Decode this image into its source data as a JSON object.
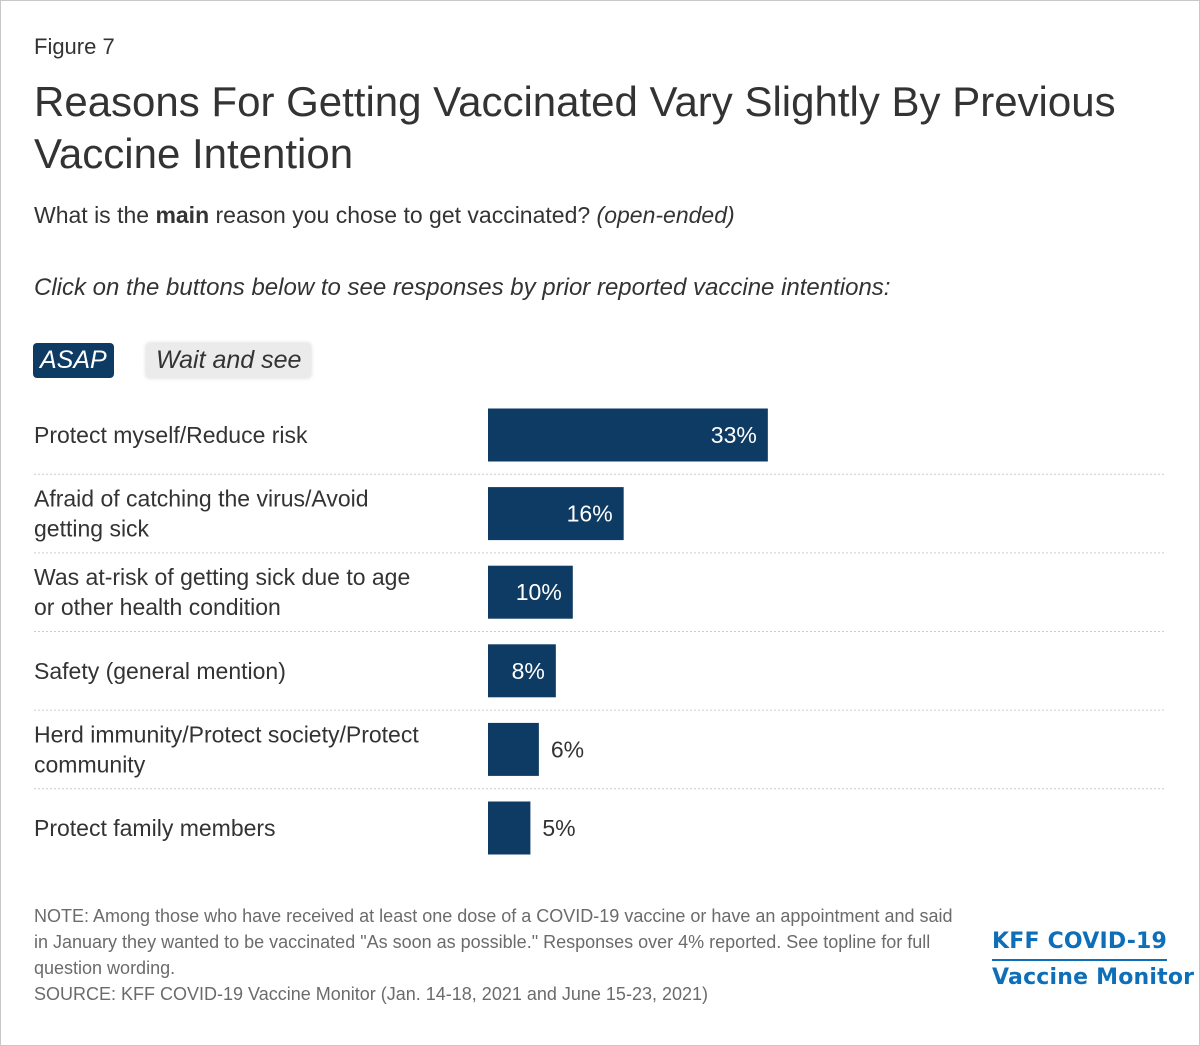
{
  "figure_label": "Figure 7",
  "title": "Reasons For Getting Vaccinated Vary Slightly By Previous Vaccine Intention",
  "subtitle": {
    "prefix": "What is the ",
    "bold": "main",
    "suffix": " reason you chose to get vaccinated? ",
    "italic": "(open-ended)"
  },
  "instruction": "Click on the buttons below to see responses by prior reported vaccine intentions:",
  "buttons": {
    "asap": "ASAP",
    "wait": "Wait and see"
  },
  "colors": {
    "bar": "#0e3b63",
    "grid": "#cccccc",
    "label_inside": "#ffffff",
    "label_outside": "#333333"
  },
  "chart_data": {
    "type": "bar",
    "orientation": "horizontal",
    "active_series": "ASAP",
    "categories": [
      [
        "Protect myself/Reduce risk"
      ],
      [
        "Afraid of catching the virus/Avoid",
        "getting sick"
      ],
      [
        "Was at-risk of getting sick due to age",
        "or other health condition"
      ],
      [
        "Safety (general mention)"
      ],
      [
        "Herd immunity/Protect society/Protect",
        "community"
      ],
      [
        "Protect family members"
      ]
    ],
    "values": [
      33,
      16,
      10,
      8,
      6,
      5
    ],
    "value_labels": [
      "33%",
      "16%",
      "10%",
      "8%",
      "6%",
      "5%"
    ],
    "xlim": [
      0,
      100
    ],
    "grid": false
  },
  "notes": {
    "note": "NOTE: Among those who have received at least one dose of a COVID-19 vaccine or have an appointment and said in January they wanted to be vaccinated \"As soon as possible.\" Responses over 4% reported. See topline for full question wording.",
    "source": "SOURCE: KFF COVID-19 Vaccine Monitor (Jan. 14-18, 2021 and June 15-23, 2021)"
  },
  "logo": {
    "line1": "KFF COVID-19",
    "line2": "Vaccine Monitor"
  }
}
